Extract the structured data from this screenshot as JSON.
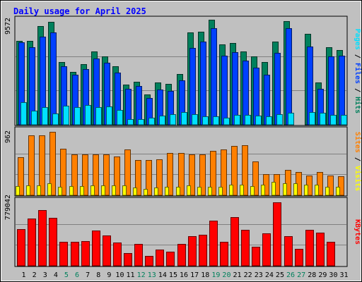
{
  "chart_data": {
    "type": "bar",
    "title": "Daily usage for April 2025",
    "x": [
      "1",
      "2",
      "3",
      "4",
      "5",
      "6",
      "7",
      "8",
      "9",
      "10",
      "11",
      "12",
      "13",
      "14",
      "15",
      "16",
      "17",
      "18",
      "19",
      "20",
      "21",
      "22",
      "23",
      "24",
      "25",
      "26",
      "27",
      "28",
      "29",
      "30",
      "31"
    ],
    "weekend_days": [
      "5",
      "6",
      "12",
      "13",
      "19",
      "20",
      "26",
      "27"
    ],
    "panels": [
      {
        "name": "hits-files-pages",
        "ymax_label": "9572",
        "ymax": 9572,
        "right_label": [
          {
            "text": "Pages",
            "color": "#00e0ff"
          },
          {
            "text": " / ",
            "color": "#000000"
          },
          {
            "text": "Files",
            "color": "#0040ff"
          },
          {
            "text": " / ",
            "color": "#000000"
          },
          {
            "text": "Hits",
            "color": "#00805c"
          }
        ],
        "series": [
          {
            "name": "Hits",
            "color": "#00805c",
            "values": [
              7750,
              7750,
              9100,
              9500,
              5800,
              4900,
              5600,
              6800,
              6300,
              5400,
              3700,
              4000,
              2800,
              3900,
              3750,
              4700,
              8500,
              8600,
              9700,
              7400,
              7550,
              6800,
              6300,
              5800,
              7700,
              9572,
              null,
              8400,
              3900,
              7150,
              6900
            ]
          },
          {
            "name": "Files",
            "color": "#0040ff",
            "values": [
              7600,
              7150,
              8150,
              8500,
              5400,
              4600,
              5150,
              6150,
              5750,
              4800,
              3350,
              3550,
              2500,
              3250,
              3100,
              4100,
              7100,
              7700,
              8900,
              6400,
              6700,
              5950,
              5300,
              4600,
              6650,
              8900,
              null,
              7200,
              3300,
              6300,
              6400
            ]
          },
          {
            "name": "Pages",
            "color": "#00e0ff",
            "values": [
              2100,
              1300,
              1650,
              1050,
              1750,
              1600,
              1800,
              1650,
              1700,
              1350,
              550,
              550,
              650,
              850,
              950,
              1150,
              1000,
              750,
              800,
              650,
              900,
              900,
              850,
              800,
              950,
              1100,
              null,
              1200,
              1100,
              900,
              900
            ]
          }
        ]
      },
      {
        "name": "visits-sites",
        "ymax_label": "962",
        "ymax": 962,
        "right_label": [
          {
            "text": "Sites",
            "color": "#ff8000"
          },
          {
            "text": " / ",
            "color": "#000000"
          },
          {
            "text": "Visits",
            "color": "#ffff00"
          }
        ],
        "series": [
          {
            "name": "Visits",
            "color": "#ff8000",
            "values": [
              575,
              905,
              910,
              962,
              705,
              625,
              625,
              625,
              620,
              585,
              700,
              530,
              535,
              545,
              640,
              645,
              615,
              625,
              670,
              700,
              750,
              760,
              510,
              325,
              325,
              385,
              350,
              300,
              355,
              300,
              290
            ]
          },
          {
            "name": "Sites",
            "color": "#ffff00",
            "values": [
              135,
              145,
              150,
              180,
              130,
              140,
              140,
              150,
              150,
              150,
              145,
              115,
              95,
              115,
              125,
              125,
              145,
              130,
              130,
              130,
              155,
              165,
              140,
              160,
              200,
              180,
              180,
              155,
              155,
              130,
              130
            ]
          }
        ]
      },
      {
        "name": "kbytes",
        "ymax_label": "779042",
        "ymax": 779042,
        "right_label": [
          {
            "text": "KBytes",
            "color": "#ff0000"
          }
        ],
        "series": [
          {
            "name": "KBytes",
            "color": "#ff0000",
            "values": [
              450000,
              580000,
              680000,
              590000,
              290000,
              290000,
              305000,
              430000,
              370000,
              285000,
              160000,
              270000,
              120000,
              200000,
              170000,
              270000,
              360000,
              385000,
              550000,
              295000,
              595000,
              440000,
              230000,
              400000,
              779042,
              360000,
              210000,
              440000,
              410000,
              295000,
              null
            ]
          }
        ]
      }
    ]
  }
}
